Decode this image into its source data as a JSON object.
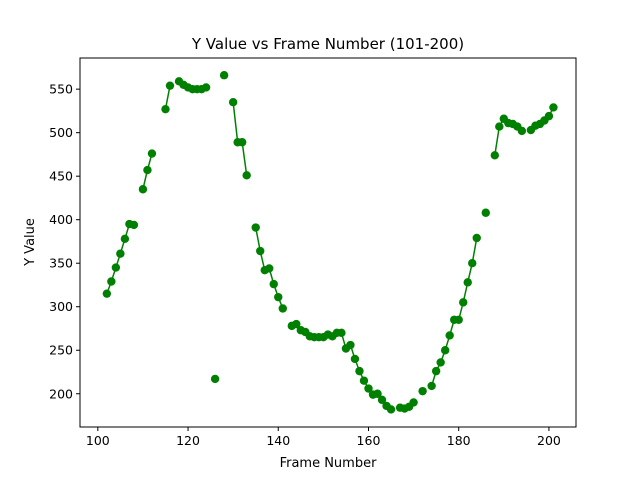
{
  "chart_data": {
    "type": "line",
    "title": "Y Value vs Frame Number (101-200)",
    "xlabel": "Frame Number",
    "ylabel": "Y Value",
    "xlim": [
      96.05,
      206.0
    ],
    "ylim": [
      161.8,
      585.8
    ],
    "xticks": [
      100,
      120,
      140,
      160,
      180,
      200
    ],
    "yticks": [
      200,
      250,
      300,
      350,
      400,
      450,
      500,
      550
    ],
    "grid": false,
    "color": "#008000",
    "markers": true,
    "segments": [
      [
        [
          102,
          315
        ],
        [
          103,
          329
        ],
        [
          104,
          345
        ],
        [
          105,
          361
        ],
        [
          106,
          378
        ],
        [
          107,
          395
        ],
        [
          108,
          394
        ]
      ],
      [
        [
          110,
          435
        ],
        [
          111,
          457
        ],
        [
          112,
          476
        ]
      ],
      [
        [
          115,
          527
        ],
        [
          116,
          554
        ]
      ],
      [
        [
          118,
          559
        ],
        [
          119,
          555
        ],
        [
          120,
          552
        ],
        [
          121,
          550
        ],
        [
          122,
          550
        ],
        [
          123,
          550
        ],
        [
          124,
          552
        ]
      ],
      [
        [
          126,
          217
        ]
      ],
      [
        [
          128,
          566
        ]
      ],
      [
        [
          130,
          535
        ],
        [
          131,
          489
        ],
        [
          132,
          489
        ],
        [
          133,
          451
        ]
      ],
      [
        [
          135,
          391
        ],
        [
          136,
          364
        ],
        [
          137,
          342
        ],
        [
          138,
          344
        ],
        [
          139,
          326
        ],
        [
          140,
          311
        ],
        [
          141,
          298
        ]
      ],
      [
        [
          143,
          278
        ],
        [
          144,
          280
        ],
        [
          145,
          273
        ],
        [
          146,
          271
        ],
        [
          147,
          266
        ],
        [
          148,
          265
        ],
        [
          149,
          265
        ],
        [
          150,
          265
        ],
        [
          151,
          268
        ],
        [
          152,
          266
        ],
        [
          153,
          270
        ],
        [
          154,
          270
        ],
        [
          155,
          252
        ],
        [
          156,
          256
        ],
        [
          157,
          240
        ],
        [
          158,
          226
        ],
        [
          159,
          215
        ],
        [
          160,
          206
        ],
        [
          161,
          199
        ],
        [
          162,
          200
        ],
        [
          163,
          193
        ],
        [
          164,
          186
        ],
        [
          165,
          182
        ]
      ],
      [
        [
          167,
          184
        ],
        [
          168,
          183
        ],
        [
          169,
          185
        ],
        [
          170,
          190
        ]
      ],
      [
        [
          172,
          203
        ]
      ],
      [
        [
          174,
          209
        ],
        [
          175,
          226
        ],
        [
          176,
          236
        ],
        [
          177,
          250
        ],
        [
          178,
          267
        ],
        [
          179,
          285
        ],
        [
          180,
          285
        ],
        [
          181,
          305
        ],
        [
          182,
          328
        ],
        [
          183,
          350
        ],
        [
          184,
          379
        ]
      ],
      [
        [
          186,
          408
        ]
      ],
      [
        [
          188,
          474
        ],
        [
          189,
          507
        ],
        [
          190,
          516
        ],
        [
          191,
          511
        ],
        [
          192,
          510
        ],
        [
          193,
          507
        ],
        [
          194,
          502
        ]
      ],
      [
        [
          196,
          503
        ],
        [
          197,
          508
        ],
        [
          198,
          510
        ],
        [
          199,
          514
        ],
        [
          200,
          519
        ],
        [
          201,
          529
        ]
      ]
    ]
  }
}
